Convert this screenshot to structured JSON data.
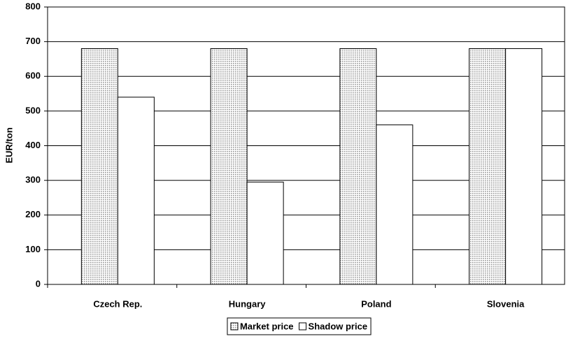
{
  "chart_data": {
    "type": "bar",
    "y_label": "EUR/ton",
    "categories": [
      "Czech Rep.",
      "Hungary",
      "Poland",
      "Slovenia"
    ],
    "series": [
      {
        "name": "Market price",
        "color": "#9a9a9a",
        "pattern": "dots",
        "values": [
          680,
          680,
          680,
          680
        ]
      },
      {
        "name": "Shadow price",
        "color": "#ffffff",
        "values": [
          540,
          295,
          460,
          680
        ]
      }
    ],
    "ylim": [
      0,
      800
    ],
    "yticks": [
      0,
      100,
      200,
      300,
      400,
      500,
      600,
      700,
      800
    ],
    "grid": true,
    "legend": "bottom"
  }
}
